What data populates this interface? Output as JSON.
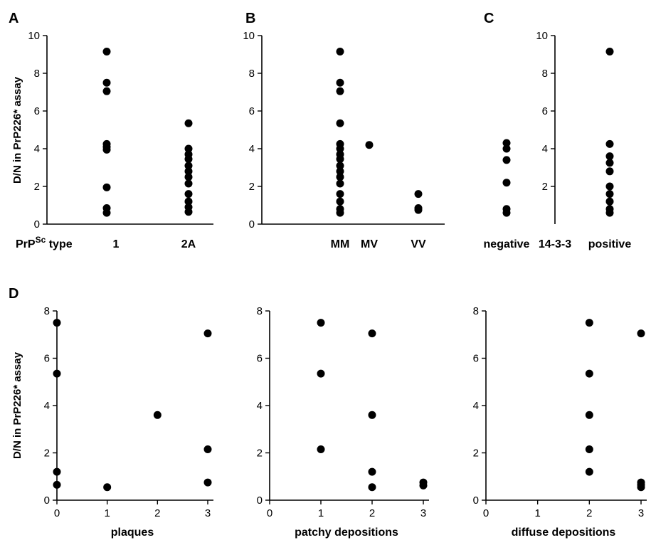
{
  "figure": {
    "ylabel": "D/N in PrP226* assay",
    "panels": [
      "A",
      "B",
      "C",
      "D"
    ]
  },
  "chart_data": [
    {
      "id": "A",
      "type": "scatter",
      "letter": "A",
      "ylim": [
        0,
        10
      ],
      "yticks": [
        "0",
        "2",
        "4",
        "6",
        "8",
        "10"
      ],
      "ylabel": "D/N in PrP226* assay",
      "x_title": "PrP",
      "x_title_sup": "Sc",
      "x_title_suffix": " type",
      "categories": [
        "1",
        "2A"
      ],
      "series": [
        {
          "category": "1",
          "values": [
            9.15,
            7.5,
            7.05,
            4.25,
            4.1,
            3.95,
            1.95,
            0.85,
            0.6
          ]
        },
        {
          "category": "2A",
          "values": [
            5.35,
            4.0,
            3.7,
            3.45,
            3.1,
            2.8,
            2.5,
            2.15,
            1.6,
            1.2,
            0.9,
            0.65
          ]
        }
      ]
    },
    {
      "id": "B",
      "type": "scatter",
      "letter": "B",
      "ylim": [
        0,
        10
      ],
      "yticks": [
        "0",
        "2",
        "4",
        "6",
        "8",
        "10"
      ],
      "categories": [
        "MM",
        "MV",
        "VV"
      ],
      "series": [
        {
          "category": "MM",
          "values": [
            9.15,
            7.5,
            7.05,
            5.35,
            4.25,
            4.0,
            3.7,
            3.45,
            3.1,
            2.8,
            2.5,
            2.15,
            1.6,
            1.2,
            0.8,
            0.6
          ]
        },
        {
          "category": "MV",
          "values": [
            4.2
          ]
        },
        {
          "category": "VV",
          "values": [
            1.6,
            0.85,
            0.75
          ]
        }
      ]
    },
    {
      "id": "C",
      "type": "scatter",
      "letter": "C",
      "ylim": [
        0,
        10
      ],
      "yticks": [
        "2",
        "4",
        "6",
        "8",
        "10"
      ],
      "categories": [
        "negative",
        "positive"
      ],
      "x_middle_label": "14-3-3",
      "series": [
        {
          "category": "negative",
          "values": [
            4.3,
            4.0,
            3.4,
            2.2,
            0.8,
            0.6
          ]
        },
        {
          "category": "positive",
          "values": [
            9.15,
            4.25,
            3.6,
            3.25,
            2.8,
            2.0,
            1.6,
            1.2,
            0.8,
            0.6
          ]
        }
      ]
    },
    {
      "id": "D1",
      "type": "scatter",
      "letter": "D",
      "xlabel": "plaques",
      "ylabel": "D/N in PrP226* assay",
      "xlim": [
        0,
        3
      ],
      "ylim": [
        0,
        8
      ],
      "xticks": [
        "0",
        "1",
        "2",
        "3"
      ],
      "yticks": [
        "0",
        "2",
        "4",
        "6",
        "8"
      ],
      "points": [
        {
          "x": 0,
          "y": 7.5
        },
        {
          "x": 0,
          "y": 5.35
        },
        {
          "x": 0,
          "y": 1.2
        },
        {
          "x": 0,
          "y": 0.65
        },
        {
          "x": 1,
          "y": 0.55
        },
        {
          "x": 2,
          "y": 3.6
        },
        {
          "x": 3,
          "y": 7.05
        },
        {
          "x": 3,
          "y": 2.15
        },
        {
          "x": 3,
          "y": 0.75
        }
      ]
    },
    {
      "id": "D2",
      "type": "scatter",
      "xlabel": "patchy depositions",
      "xlim": [
        0,
        3
      ],
      "ylim": [
        0,
        8
      ],
      "xticks": [
        "0",
        "1",
        "2",
        "3"
      ],
      "yticks": [
        "0",
        "2",
        "4",
        "6",
        "8"
      ],
      "points": [
        {
          "x": 1,
          "y": 7.5
        },
        {
          "x": 1,
          "y": 5.35
        },
        {
          "x": 1,
          "y": 2.15
        },
        {
          "x": 2,
          "y": 7.05
        },
        {
          "x": 2,
          "y": 3.6
        },
        {
          "x": 2,
          "y": 1.2
        },
        {
          "x": 2,
          "y": 0.55
        },
        {
          "x": 3,
          "y": 0.75
        },
        {
          "x": 3,
          "y": 0.62
        }
      ]
    },
    {
      "id": "D3",
      "type": "scatter",
      "xlabel": "diffuse depositions",
      "xlim": [
        0,
        3
      ],
      "ylim": [
        0,
        8
      ],
      "xticks": [
        "0",
        "1",
        "2",
        "3"
      ],
      "yticks": [
        "0",
        "2",
        "4",
        "6",
        "8"
      ],
      "points": [
        {
          "x": 2,
          "y": 7.5
        },
        {
          "x": 2,
          "y": 5.35
        },
        {
          "x": 2,
          "y": 3.6
        },
        {
          "x": 2,
          "y": 2.15
        },
        {
          "x": 2,
          "y": 1.2
        },
        {
          "x": 3,
          "y": 7.05
        },
        {
          "x": 3,
          "y": 0.75
        },
        {
          "x": 3,
          "y": 0.65
        },
        {
          "x": 3,
          "y": 0.55
        }
      ]
    }
  ]
}
